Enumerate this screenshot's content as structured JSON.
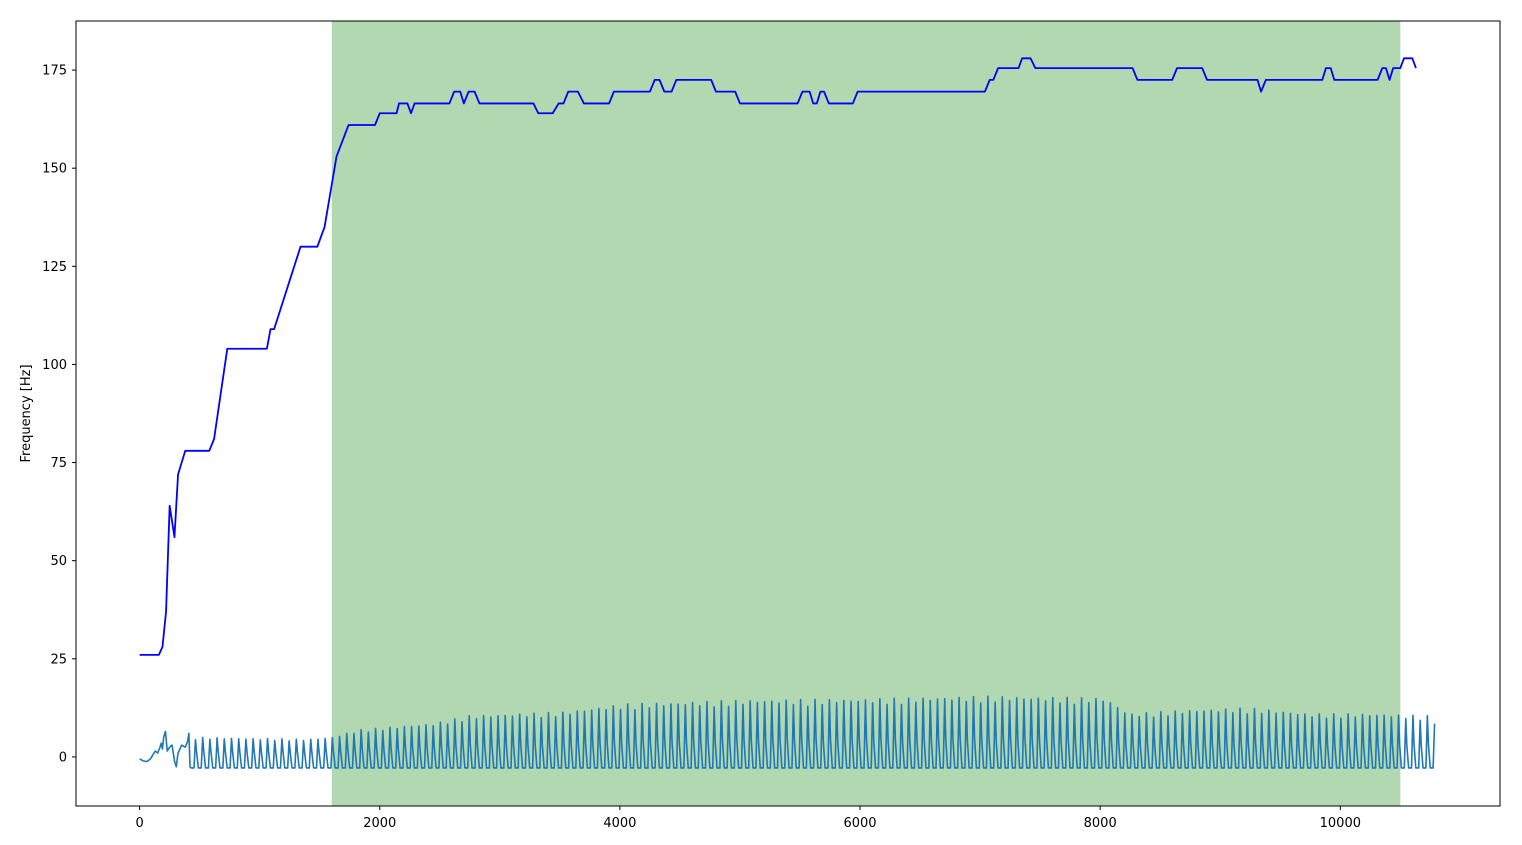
{
  "chart_data": {
    "type": "line",
    "title": "",
    "xlabel": "",
    "ylabel": "Frequency [Hz]",
    "xlim": [
      -530,
      11330
    ],
    "ylim": [
      -12.5,
      187.5
    ],
    "xticks": [
      0,
      2000,
      4000,
      6000,
      8000,
      10000
    ],
    "yticks": [
      0,
      25,
      50,
      75,
      100,
      125,
      150,
      175
    ],
    "grid": false,
    "legend": "none",
    "shaded_region": {
      "x_start": 1600,
      "x_end": 10500,
      "color": "#b2d8b2"
    },
    "series": [
      {
        "color": "#0000ff",
        "points": [
          [
            0,
            26
          ],
          [
            160,
            26
          ],
          [
            190,
            28
          ],
          [
            220,
            37
          ],
          [
            250,
            64
          ],
          [
            290,
            56
          ],
          [
            320,
            72
          ],
          [
            380,
            78
          ],
          [
            580,
            78
          ],
          [
            620,
            81
          ],
          [
            730,
            104
          ],
          [
            1060,
            104
          ],
          [
            1090,
            109
          ],
          [
            1120,
            109
          ],
          [
            1340,
            130
          ],
          [
            1480,
            130
          ],
          [
            1540,
            135
          ],
          [
            1640,
            153
          ],
          [
            1740,
            161
          ],
          [
            1960,
            161
          ],
          [
            2000,
            164
          ],
          [
            2140,
            164
          ],
          [
            2160,
            166.5
          ],
          [
            2230,
            166.5
          ],
          [
            2260,
            164
          ],
          [
            2290,
            166.5
          ],
          [
            2580,
            166.5
          ],
          [
            2620,
            169.5
          ],
          [
            2670,
            169.5
          ],
          [
            2700,
            166.5
          ],
          [
            2740,
            169.5
          ],
          [
            2790,
            169.5
          ],
          [
            2830,
            166.5
          ],
          [
            3280,
            166.5
          ],
          [
            3320,
            164
          ],
          [
            3440,
            164
          ],
          [
            3490,
            166.5
          ],
          [
            3530,
            166.5
          ],
          [
            3570,
            169.5
          ],
          [
            3650,
            169.5
          ],
          [
            3700,
            166.5
          ],
          [
            3910,
            166.5
          ],
          [
            3950,
            169.5
          ],
          [
            4250,
            169.5
          ],
          [
            4290,
            172.5
          ],
          [
            4330,
            172.5
          ],
          [
            4370,
            169.5
          ],
          [
            4430,
            169.5
          ],
          [
            4470,
            172.5
          ],
          [
            4760,
            172.5
          ],
          [
            4800,
            169.5
          ],
          [
            4960,
            169.5
          ],
          [
            5000,
            166.5
          ],
          [
            5480,
            166.5
          ],
          [
            5520,
            169.5
          ],
          [
            5580,
            169.5
          ],
          [
            5610,
            166.5
          ],
          [
            5640,
            166.5
          ],
          [
            5670,
            169.5
          ],
          [
            5700,
            169.5
          ],
          [
            5740,
            166.5
          ],
          [
            5940,
            166.5
          ],
          [
            5980,
            169.5
          ],
          [
            7040,
            169.5
          ],
          [
            7080,
            172.5
          ],
          [
            7110,
            172.5
          ],
          [
            7150,
            175.5
          ],
          [
            7320,
            175.5
          ],
          [
            7350,
            178
          ],
          [
            7420,
            178
          ],
          [
            7460,
            175.5
          ],
          [
            8270,
            175.5
          ],
          [
            8310,
            172.5
          ],
          [
            8600,
            172.5
          ],
          [
            8640,
            175.5
          ],
          [
            8850,
            175.5
          ],
          [
            8890,
            172.5
          ],
          [
            9310,
            172.5
          ],
          [
            9340,
            169.5
          ],
          [
            9380,
            172.5
          ],
          [
            9850,
            172.5
          ],
          [
            9880,
            175.5
          ],
          [
            9920,
            175.5
          ],
          [
            9950,
            172.5
          ],
          [
            10310,
            172.5
          ],
          [
            10350,
            175.5
          ],
          [
            10380,
            175.5
          ],
          [
            10410,
            172.5
          ],
          [
            10440,
            175.5
          ],
          [
            10500,
            175.5
          ],
          [
            10530,
            178
          ],
          [
            10600,
            178
          ],
          [
            10630,
            175.5
          ]
        ]
      },
      {
        "color": "#1f77b4",
        "x_start": 0,
        "x_end": 10790,
        "trough": -2.8,
        "intro_points": [
          [
            0,
            -0.5
          ],
          [
            30,
            -1
          ],
          [
            60,
            -1.2
          ],
          [
            90,
            -0.5
          ],
          [
            110,
            0.5
          ],
          [
            130,
            1.5
          ],
          [
            150,
            1
          ],
          [
            170,
            2.5
          ],
          [
            180,
            3.5
          ],
          [
            190,
            2
          ],
          [
            200,
            5
          ],
          [
            215,
            6.5
          ],
          [
            230,
            1.5
          ],
          [
            250,
            2.5
          ],
          [
            270,
            3
          ],
          [
            290,
            -1
          ],
          [
            305,
            -2.5
          ],
          [
            320,
            1
          ],
          [
            350,
            3
          ],
          [
            380,
            2.5
          ],
          [
            400,
            4
          ],
          [
            410,
            6
          ],
          [
            420,
            -2.5
          ]
        ],
        "peak_envelope": [
          [
            420,
            5
          ],
          [
            1350,
            4.5
          ],
          [
            1550,
            5
          ],
          [
            1670,
            6
          ],
          [
            1800,
            7
          ],
          [
            2000,
            7.5
          ],
          [
            2400,
            8.5
          ],
          [
            2700,
            10.5
          ],
          [
            3100,
            11
          ],
          [
            3500,
            11.5
          ],
          [
            4000,
            13.5
          ],
          [
            4500,
            14
          ],
          [
            5000,
            14.5
          ],
          [
            6000,
            14.8
          ],
          [
            7000,
            15.5
          ],
          [
            8000,
            15
          ],
          [
            8200,
            11
          ],
          [
            8700,
            12
          ],
          [
            9200,
            12.5
          ],
          [
            9700,
            11
          ],
          [
            10200,
            11
          ],
          [
            10700,
            10.5
          ],
          [
            10790,
            8
          ]
        ],
        "period": 60
      }
    ]
  }
}
